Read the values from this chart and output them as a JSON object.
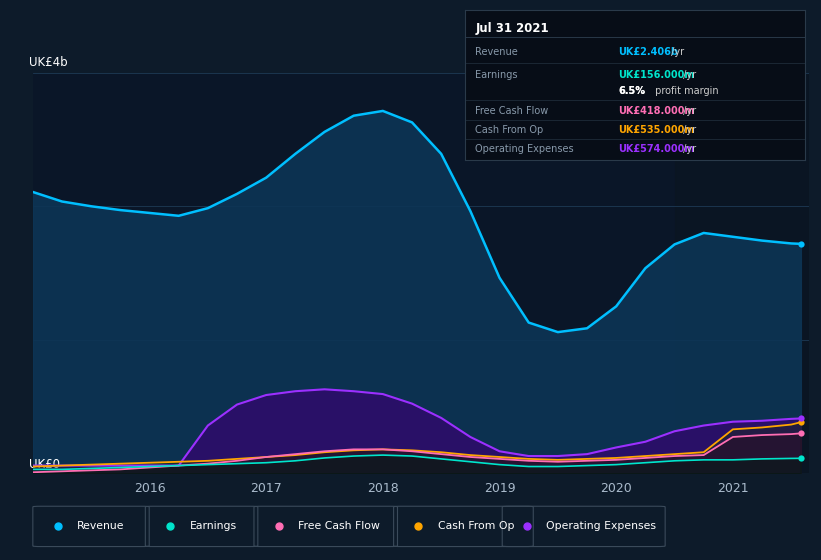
{
  "bg_color": "#0d1b2a",
  "panel_bg": "#0a1628",
  "grid_color": "#1e3a55",
  "x_years": [
    2015.0,
    2015.25,
    2015.5,
    2015.75,
    2016.0,
    2016.25,
    2016.5,
    2016.75,
    2017.0,
    2017.25,
    2017.5,
    2017.75,
    2018.0,
    2018.25,
    2018.5,
    2018.75,
    2019.0,
    2019.25,
    2019.5,
    2019.75,
    2020.0,
    2020.25,
    2020.5,
    2020.75,
    2021.0,
    2021.25,
    2021.5,
    2021.583
  ],
  "revenue": [
    2.95,
    2.85,
    2.8,
    2.76,
    2.73,
    2.7,
    2.78,
    2.93,
    3.1,
    3.35,
    3.58,
    3.75,
    3.8,
    3.68,
    3.35,
    2.75,
    2.05,
    1.58,
    1.48,
    1.52,
    1.75,
    2.15,
    2.4,
    2.52,
    2.48,
    2.44,
    2.41,
    2.406
  ],
  "earnings": [
    0.04,
    0.04,
    0.05,
    0.06,
    0.07,
    0.08,
    0.09,
    0.1,
    0.11,
    0.13,
    0.16,
    0.18,
    0.19,
    0.18,
    0.15,
    0.12,
    0.09,
    0.07,
    0.07,
    0.08,
    0.09,
    0.11,
    0.13,
    0.14,
    0.14,
    0.15,
    0.155,
    0.156
  ],
  "free_cash_flow": [
    0.01,
    0.02,
    0.03,
    0.04,
    0.06,
    0.08,
    0.1,
    0.13,
    0.17,
    0.2,
    0.23,
    0.25,
    0.25,
    0.23,
    0.2,
    0.17,
    0.15,
    0.13,
    0.12,
    0.13,
    0.14,
    0.16,
    0.18,
    0.19,
    0.38,
    0.4,
    0.41,
    0.418
  ],
  "cash_from_op": [
    0.07,
    0.08,
    0.09,
    0.1,
    0.11,
    0.12,
    0.13,
    0.15,
    0.17,
    0.19,
    0.22,
    0.24,
    0.25,
    0.24,
    0.22,
    0.19,
    0.17,
    0.15,
    0.14,
    0.15,
    0.16,
    0.18,
    0.2,
    0.22,
    0.46,
    0.48,
    0.51,
    0.535
  ],
  "op_expenses": [
    0.08,
    0.08,
    0.08,
    0.08,
    0.08,
    0.08,
    0.5,
    0.72,
    0.82,
    0.86,
    0.88,
    0.86,
    0.83,
    0.73,
    0.58,
    0.38,
    0.23,
    0.18,
    0.18,
    0.2,
    0.27,
    0.33,
    0.44,
    0.5,
    0.54,
    0.55,
    0.57,
    0.574
  ],
  "revenue_color": "#00bfff",
  "earnings_color": "#00e5cc",
  "fcf_color": "#ff6eb4",
  "cashop_color": "#ffa500",
  "opex_color": "#9b30ff",
  "revenue_fill": "#0d3555",
  "opex_fill": "#2d0d6a",
  "tooltip_bg": "#070d17",
  "tooltip_border": "#2a3a4a",
  "tooltip_title": "Jul 31 2021",
  "ylim": [
    0,
    4.2
  ],
  "xlim": [
    2015.0,
    2021.65
  ],
  "shade_start": 2020.5,
  "shade_color": "#0a1520",
  "ylabel_top": "UK£4b",
  "ylabel_bot": "UK£0",
  "xticks": [
    2016,
    2017,
    2018,
    2019,
    2020,
    2021
  ]
}
